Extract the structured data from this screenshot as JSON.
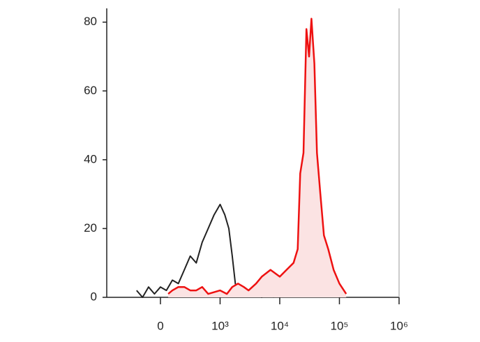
{
  "chart_data": {
    "type": "line",
    "xscale": "biexponential",
    "xlim": [
      -900,
      1000000
    ],
    "xticks": [
      0,
      {
        "value": 1000,
        "label": "10³"
      },
      {
        "value": 10000,
        "label": "10⁴"
      },
      {
        "value": 100000,
        "label": "10⁵"
      },
      {
        "value": 1000000,
        "label": "10⁶"
      }
    ],
    "ylim": [
      0,
      84
    ],
    "yticks": [
      0,
      20,
      40,
      60,
      80
    ],
    "series": [
      {
        "color": "#222222",
        "x": [
          -400,
          -300,
          -200,
          -100,
          0,
          100,
          200,
          300,
          400,
          500,
          600,
          700,
          800,
          900,
          1000,
          1200,
          1400,
          1600,
          1800,
          2000,
          2500,
          3000,
          4000,
          5000,
          6000,
          8000
        ],
        "values": [
          2,
          0,
          3,
          1,
          3,
          2,
          5,
          4,
          8,
          12,
          10,
          16,
          20,
          24,
          27,
          24,
          20,
          12,
          4,
          2,
          1,
          2,
          1,
          0,
          1,
          0
        ]
      },
      {
        "color": "#ee1111",
        "fill": "#fbe3e3",
        "x": [
          130,
          200,
          300,
          400,
          500,
          600,
          700,
          800,
          1000,
          1300,
          1600,
          2000,
          2500,
          3000,
          4000,
          5000,
          7000,
          10000,
          13000,
          17000,
          20000,
          22000,
          25000,
          28000,
          31000,
          34000,
          38000,
          42000,
          48000,
          55000,
          65000,
          80000,
          100000,
          130000
        ],
        "values": [
          1,
          2,
          3,
          3,
          2,
          2,
          3,
          1,
          2,
          1,
          3,
          4,
          3,
          2,
          4,
          6,
          8,
          6,
          8,
          10,
          14,
          36,
          42,
          78,
          70,
          81,
          68,
          42,
          30,
          18,
          14,
          8,
          4,
          1
        ]
      }
    ]
  }
}
